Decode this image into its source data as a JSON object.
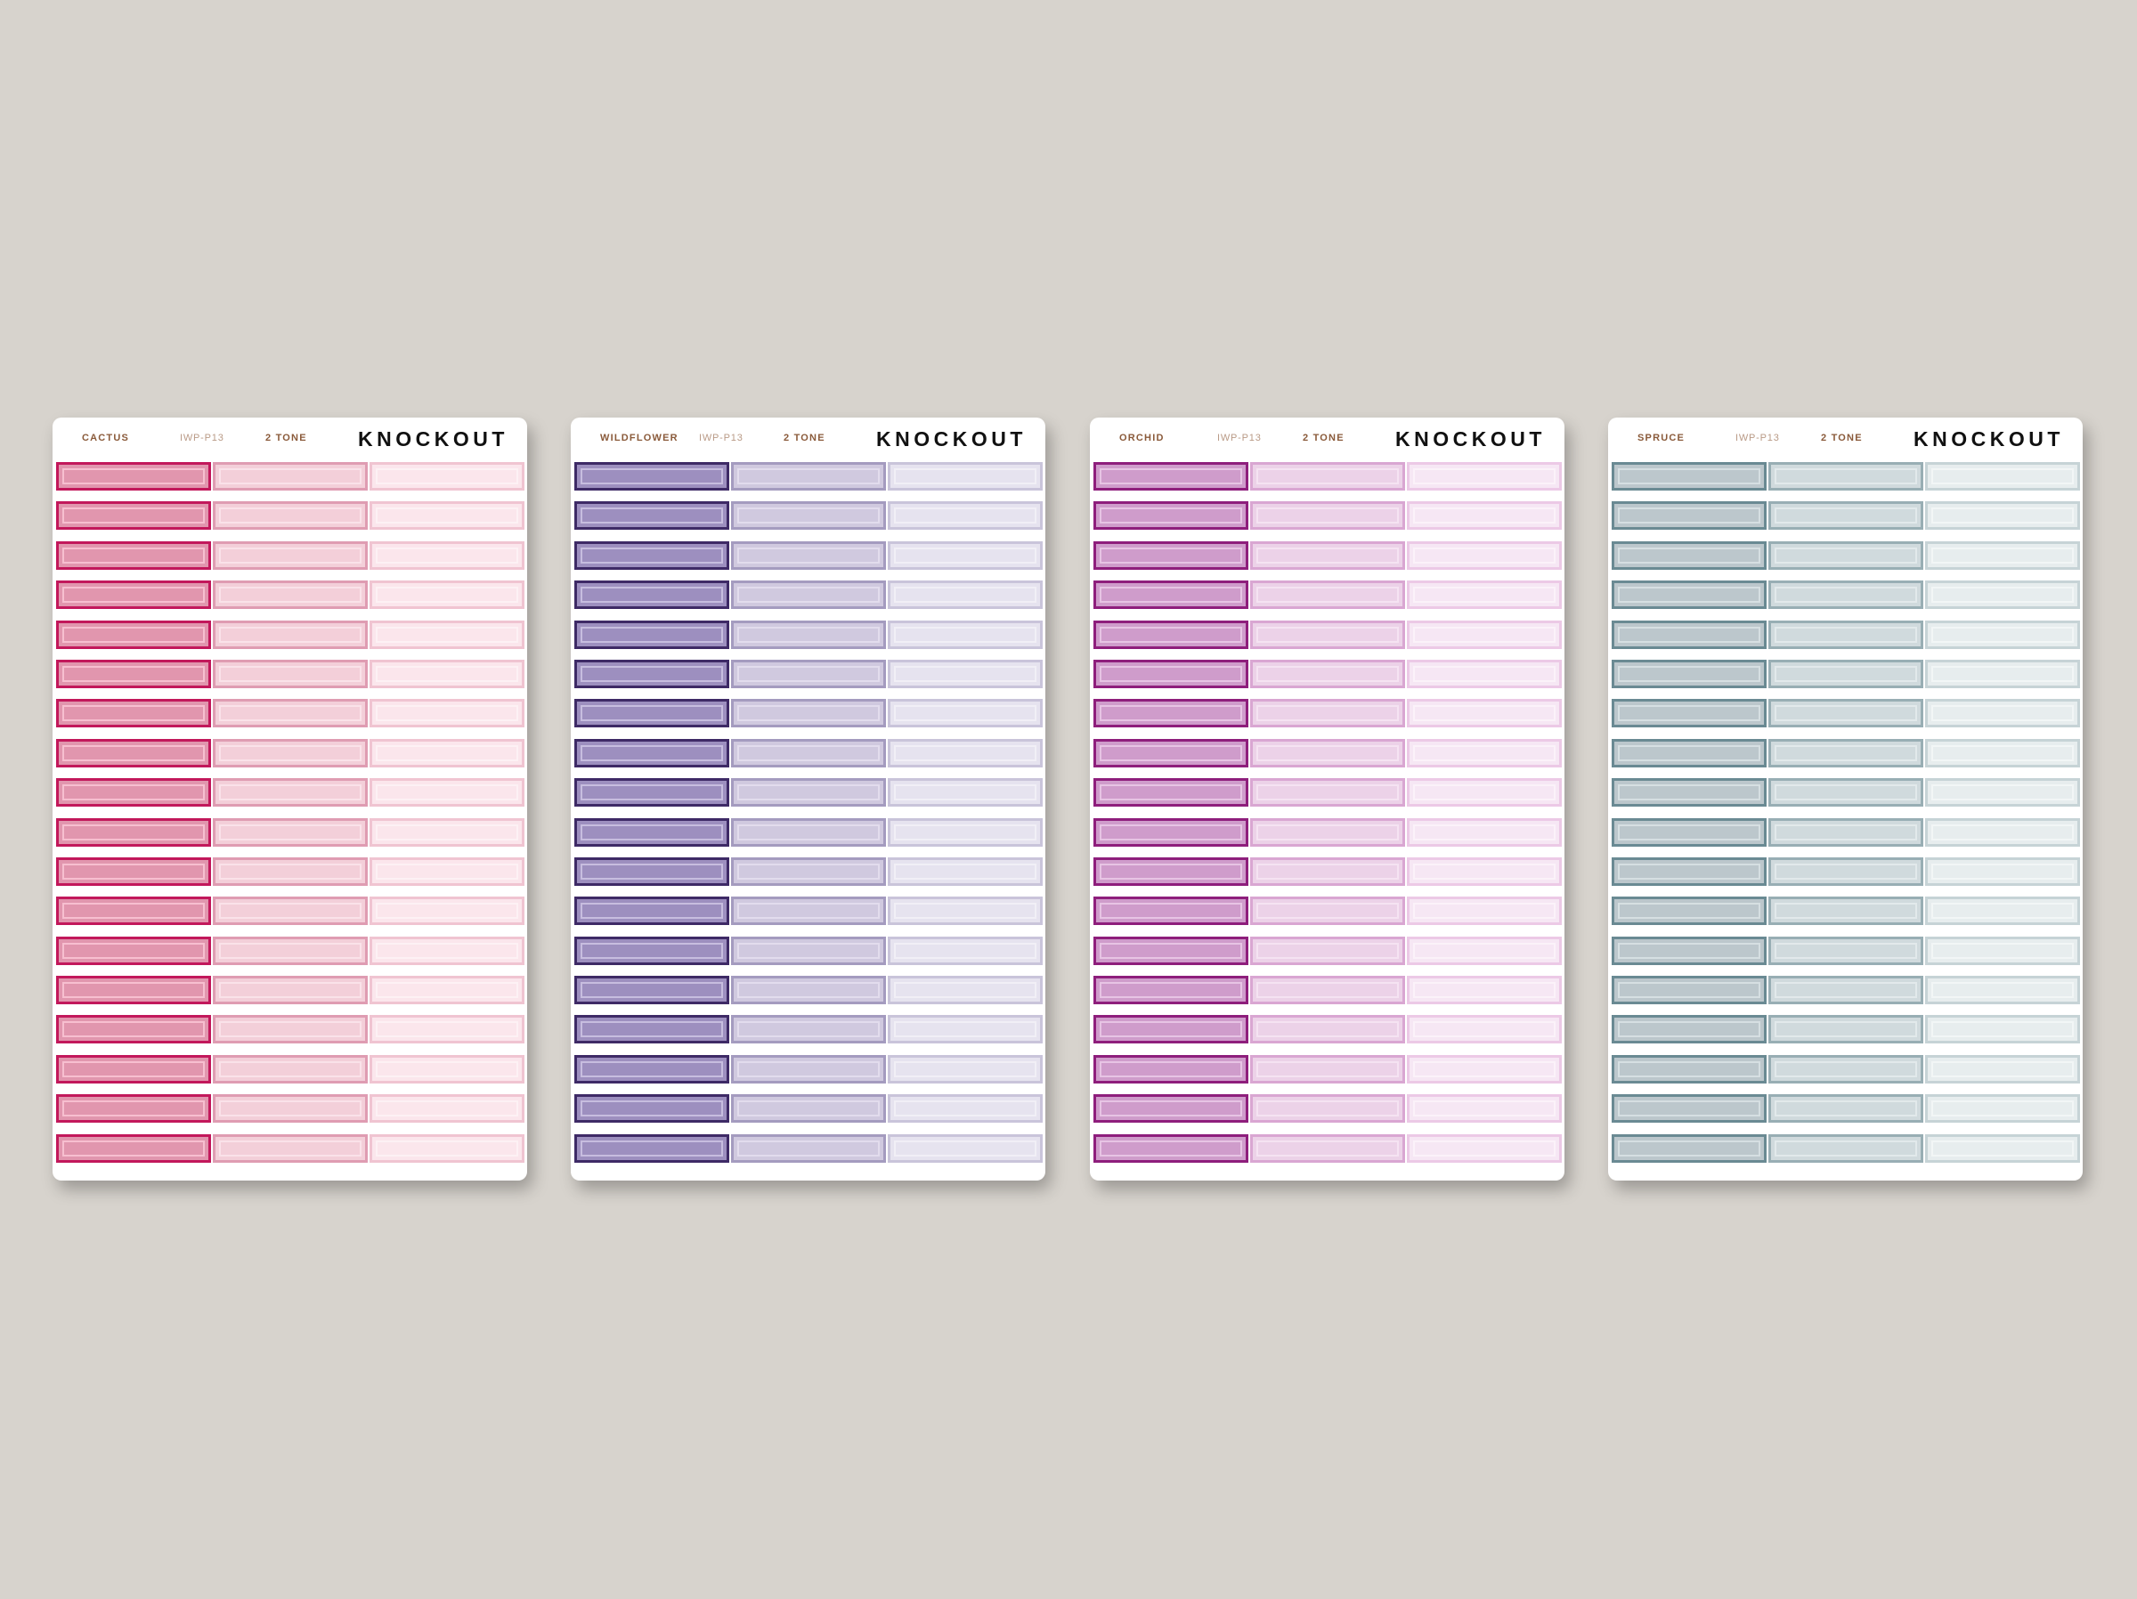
{
  "brand": "KNOCKOUT",
  "code": "IWP-P13",
  "tone": "2 TONE",
  "rows_per_sheet": 18,
  "sheets": [
    {
      "name": "CACTUS",
      "colors": {
        "col1": {
          "frame": "#c2185b",
          "fill": "#e196ae",
          "inner": "#f7bfd0"
        },
        "col2": {
          "frame": "#df9cb2",
          "fill": "#f3cfd9",
          "inner": "#fae2e9"
        },
        "col3": {
          "frame": "#f0c4d1",
          "fill": "#fbe6ec",
          "inner": "#fdf1f4"
        }
      }
    },
    {
      "name": "WILDFLOWER",
      "colors": {
        "col1": {
          "frame": "#3e2a66",
          "fill": "#9d8fbf",
          "inner": "#c7bddf"
        },
        "col2": {
          "frame": "#a49bbf",
          "fill": "#d0c9df",
          "inner": "#e2dced"
        },
        "col3": {
          "frame": "#c9c4da",
          "fill": "#e6e3ef",
          "inner": "#f1eff6"
        }
      }
    },
    {
      "name": "ORCHID",
      "colors": {
        "col1": {
          "frame": "#8e1e7c",
          "fill": "#cf9ccb",
          "inner": "#e7c4e4"
        },
        "col2": {
          "frame": "#d9a6d2",
          "fill": "#ecd2e8",
          "inner": "#f5e3f2"
        },
        "col3": {
          "frame": "#ecc9e6",
          "fill": "#f6e7f4",
          "inner": "#fbf2f9"
        }
      }
    },
    {
      "name": "SPRUCE",
      "colors": {
        "col1": {
          "frame": "#6a8a93",
          "fill": "#bcc7cc",
          "inner": "#d6dfe2"
        },
        "col2": {
          "frame": "#98aeb4",
          "fill": "#d0dadd",
          "inner": "#e2e9eb"
        },
        "col3": {
          "frame": "#c6d3d6",
          "fill": "#e7edee",
          "inner": "#f2f6f6"
        }
      }
    }
  ]
}
